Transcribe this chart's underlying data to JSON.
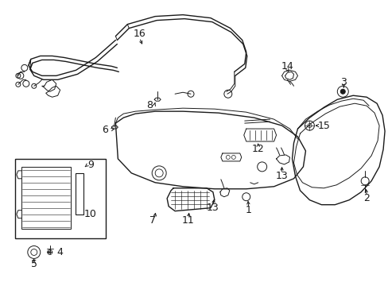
{
  "bg_color": "#ffffff",
  "line_color": "#1a1a1a",
  "fig_width": 4.89,
  "fig_height": 3.6,
  "dpi": 100,
  "label_fontsize": 9,
  "lw_thin": 0.7,
  "lw_med": 1.0,
  "lw_thick": 1.2
}
